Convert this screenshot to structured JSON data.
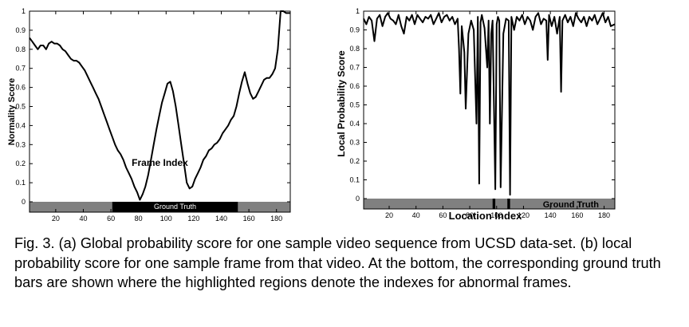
{
  "chart_data": [
    {
      "type": "line",
      "title": "",
      "xlabel": "Frame Index",
      "ylabel": "Normality Score",
      "xlim": [
        1,
        190
      ],
      "ylim": [
        0,
        1
      ],
      "xticks": [
        20,
        40,
        60,
        80,
        100,
        120,
        140,
        160,
        180
      ],
      "yticks": [
        0,
        0.1,
        0.2,
        0.3,
        0.4,
        0.5,
        0.6,
        0.7,
        0.8,
        0.9,
        1
      ],
      "ytick_labels": [
        "0",
        "0.1",
        "0.2",
        "0.3",
        "0.4",
        "0.5",
        "0.6",
        "0.7",
        "0.8",
        "0.9",
        "1"
      ],
      "x": [
        1,
        3,
        5,
        7,
        9,
        11,
        13,
        15,
        17,
        19,
        21,
        23,
        25,
        27,
        29,
        31,
        33,
        35,
        37,
        39,
        41,
        43,
        45,
        47,
        49,
        51,
        53,
        55,
        57,
        59,
        61,
        63,
        65,
        67,
        69,
        71,
        73,
        75,
        77,
        79,
        81,
        83,
        85,
        87,
        89,
        91,
        93,
        95,
        97,
        99,
        101,
        103,
        105,
        107,
        109,
        111,
        113,
        115,
        117,
        119,
        121,
        123,
        125,
        127,
        129,
        131,
        133,
        135,
        137,
        139,
        141,
        143,
        145,
        147,
        149,
        151,
        153,
        155,
        157,
        159,
        161,
        163,
        165,
        167,
        169,
        171,
        173,
        175,
        177,
        179,
        181,
        183,
        185,
        187,
        190
      ],
      "values": [
        0.86,
        0.84,
        0.82,
        0.8,
        0.82,
        0.82,
        0.8,
        0.83,
        0.84,
        0.83,
        0.83,
        0.82,
        0.8,
        0.79,
        0.77,
        0.75,
        0.74,
        0.74,
        0.73,
        0.71,
        0.69,
        0.66,
        0.63,
        0.6,
        0.57,
        0.54,
        0.5,
        0.46,
        0.42,
        0.38,
        0.34,
        0.3,
        0.27,
        0.25,
        0.22,
        0.18,
        0.15,
        0.12,
        0.08,
        0.05,
        0.01,
        0.04,
        0.08,
        0.14,
        0.22,
        0.3,
        0.38,
        0.45,
        0.52,
        0.57,
        0.62,
        0.63,
        0.58,
        0.5,
        0.4,
        0.3,
        0.2,
        0.1,
        0.07,
        0.08,
        0.12,
        0.15,
        0.18,
        0.22,
        0.24,
        0.27,
        0.28,
        0.3,
        0.31,
        0.33,
        0.36,
        0.38,
        0.4,
        0.43,
        0.45,
        0.5,
        0.57,
        0.63,
        0.68,
        0.62,
        0.57,
        0.54,
        0.55,
        0.58,
        0.61,
        0.64,
        0.65,
        0.65,
        0.67,
        0.7,
        0.8,
        1.0,
        1.0,
        0.99,
        0.99
      ],
      "ground_truth": {
        "label": "Ground Truth",
        "abnormal_ranges": [
          [
            61,
            152
          ]
        ]
      }
    },
    {
      "type": "line",
      "title": "",
      "xlabel": "Location Index",
      "ylabel": "Local Probability Score",
      "xlim": [
        1,
        188
      ],
      "ylim": [
        0,
        1
      ],
      "xticks": [
        20,
        40,
        60,
        80,
        100,
        120,
        140,
        160,
        180
      ],
      "yticks": [
        0,
        0.1,
        0.2,
        0.3,
        0.4,
        0.5,
        0.6,
        0.7,
        0.8,
        0.9,
        1
      ],
      "ytick_labels": [
        "0",
        "0.1",
        "0.2",
        "0.3",
        "0.4",
        "0.5",
        "0.6",
        "0.7",
        "0.8",
        "0.9",
        "1"
      ],
      "x": [
        1,
        3,
        5,
        7,
        9,
        11,
        13,
        15,
        17,
        19,
        21,
        23,
        25,
        27,
        29,
        31,
        33,
        35,
        37,
        39,
        41,
        43,
        45,
        47,
        49,
        51,
        53,
        55,
        57,
        59,
        61,
        63,
        65,
        67,
        69,
        71,
        72,
        73,
        74,
        75,
        76,
        77,
        79,
        81,
        83,
        85,
        86,
        87,
        88,
        89,
        91,
        93,
        94,
        95,
        96,
        97,
        99,
        100,
        101,
        102,
        103,
        105,
        107,
        109,
        110,
        111,
        113,
        115,
        117,
        119,
        121,
        123,
        125,
        127,
        129,
        131,
        133,
        135,
        137,
        138,
        139,
        141,
        143,
        145,
        147,
        148,
        149,
        151,
        153,
        155,
        157,
        159,
        161,
        163,
        165,
        167,
        169,
        171,
        173,
        175,
        177,
        179,
        181,
        183,
        185,
        188
      ],
      "values": [
        0.96,
        0.93,
        0.97,
        0.95,
        0.84,
        0.96,
        0.98,
        0.92,
        0.97,
        0.99,
        0.96,
        0.95,
        0.93,
        0.98,
        0.92,
        0.88,
        0.97,
        0.95,
        0.98,
        0.93,
        0.98,
        0.96,
        0.94,
        0.97,
        0.96,
        0.98,
        0.93,
        0.96,
        0.99,
        0.94,
        0.97,
        0.98,
        0.95,
        0.97,
        0.93,
        0.96,
        0.8,
        0.56,
        0.92,
        0.85,
        0.78,
        0.48,
        0.88,
        0.95,
        0.9,
        0.4,
        0.97,
        0.08,
        0.94,
        0.98,
        0.91,
        0.7,
        0.95,
        0.4,
        0.88,
        0.95,
        0.05,
        0.93,
        0.97,
        0.95,
        0.06,
        0.88,
        0.96,
        0.95,
        0.02,
        0.97,
        0.9,
        0.97,
        0.95,
        0.98,
        0.93,
        0.97,
        0.95,
        0.9,
        0.97,
        0.99,
        0.93,
        0.96,
        0.95,
        0.74,
        0.98,
        0.92,
        0.97,
        0.88,
        0.97,
        0.57,
        0.95,
        0.98,
        0.94,
        0.97,
        0.92,
        0.99,
        0.96,
        0.94,
        0.97,
        0.92,
        0.97,
        0.95,
        0.98,
        0.93,
        0.96,
        0.99,
        0.94,
        0.97,
        0.92,
        0.93
      ],
      "ground_truth": {
        "label": "Ground Truth",
        "abnormal_ranges": [
          [
            97,
            99
          ],
          [
            108,
            110
          ]
        ]
      }
    }
  ],
  "colors": {
    "line": "#000000",
    "bar_normal": "#808080",
    "bar_abnormal": "#000000",
    "bar_label_on_abnormal": "#ffffff",
    "bar_label_on_normal": "#000000"
  },
  "caption": "Fig. 3. (a) Global probability score for one sample video sequence from UCSD data-set. (b) local probability score for one sample frame from that video. At the bottom, the corresponding ground truth bars are shown where the highlighted regions denote the indexes for abnormal frames."
}
